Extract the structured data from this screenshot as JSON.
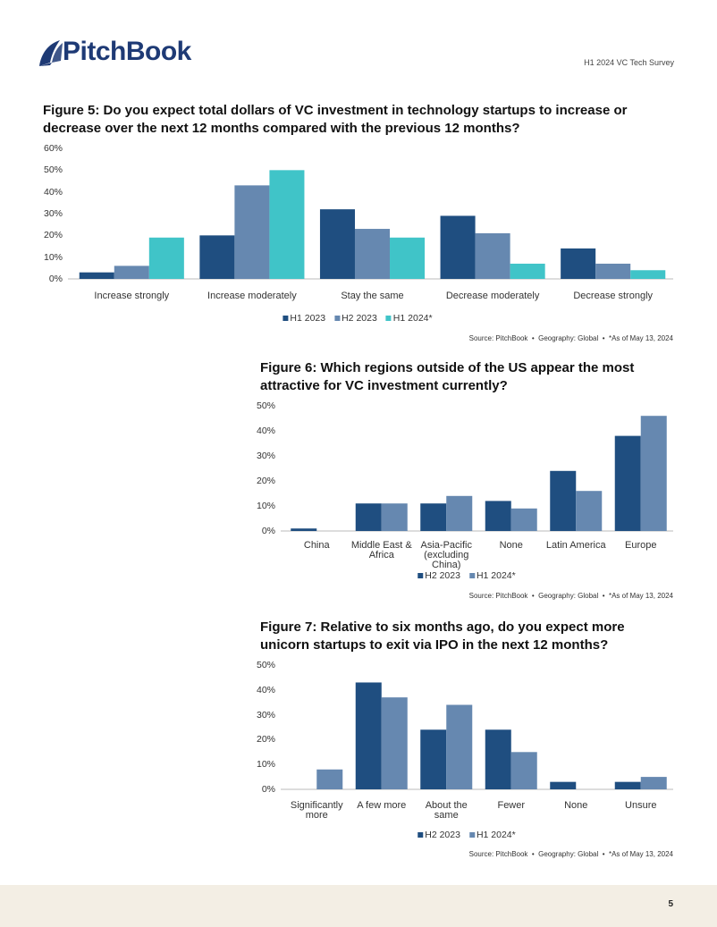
{
  "header": {
    "logo": "PitchBook",
    "report": "H1 2024 VC Tech Survey"
  },
  "footer": {
    "page": 5
  },
  "chart_data": [
    {
      "type": "bar",
      "title": "Figure 5: Do you expect total dollars of VC investment in technology startups to increase or decrease over the next 12 months compared with the previous 12 months?",
      "categories": [
        "Increase strongly",
        "Increase moderately",
        "Stay the same",
        "Decrease moderately",
        "Decrease strongly"
      ],
      "series": [
        {
          "name": "H1 2023",
          "color": "#1f4e80",
          "values": [
            3,
            20,
            32,
            29,
            14
          ]
        },
        {
          "name": "H2 2023",
          "color": "#6688b0",
          "values": [
            6,
            43,
            23,
            21,
            7
          ]
        },
        {
          "name": "H1 2024*",
          "color": "#40c4c8",
          "values": [
            19,
            50,
            19,
            7,
            4
          ]
        }
      ],
      "ylim": [
        0,
        60
      ],
      "yticks": [
        {
          "value": 0,
          "label": "0%"
        },
        {
          "value": 10,
          "label": "10%"
        },
        {
          "value": 20,
          "label": "20%"
        },
        {
          "value": 30,
          "label": "30%"
        },
        {
          "value": 40,
          "label": "40%"
        },
        {
          "value": 50,
          "label": "50%"
        },
        {
          "value": 60,
          "label": "60%"
        }
      ],
      "grid": false,
      "legend": "bottom",
      "source": "Source: PitchBook  •  Geography: Global  •  *As of May 13, 2024"
    },
    {
      "type": "bar",
      "title": "Figure 6: Which regions outside of the US appear the most attractive for VC investment currently?",
      "categories": [
        "China",
        "Middle East & Africa",
        "Asia-Pacific (excluding China)",
        "None",
        "Latin America",
        "Europe"
      ],
      "series": [
        {
          "name": "H2 2023",
          "color": "#1f4e80",
          "values": [
            1,
            11,
            11,
            12,
            24,
            38
          ]
        },
        {
          "name": "H1 2024*",
          "color": "#6688b0",
          "values": [
            0,
            11,
            14,
            9,
            16,
            46
          ]
        }
      ],
      "ylim": [
        0,
        50
      ],
      "yticks": [
        {
          "value": 0,
          "label": "0%"
        },
        {
          "value": 10,
          "label": "10%"
        },
        {
          "value": 20,
          "label": "20%"
        },
        {
          "value": 30,
          "label": "30%"
        },
        {
          "value": 40,
          "label": "40%"
        },
        {
          "value": 50,
          "label": "50%"
        }
      ],
      "grid": false,
      "legend": "bottom",
      "source": "Source: PitchBook  •  Geography: Global  •  *As of May 13, 2024"
    },
    {
      "type": "bar",
      "title": "Figure 7: Relative to six months ago, do you expect more unicorn startups to exit via IPO in the next 12 months?",
      "categories": [
        "Significantly more",
        "A few more",
        "About the same",
        "Fewer",
        "None",
        "Unsure"
      ],
      "series": [
        {
          "name": "H2 2023",
          "color": "#1f4e80",
          "values": [
            0,
            43,
            24,
            24,
            3,
            3
          ]
        },
        {
          "name": "H1 2024*",
          "color": "#6688b0",
          "values": [
            8,
            37,
            34,
            15,
            0,
            5
          ]
        }
      ],
      "ylim": [
        0,
        50
      ],
      "yticks": [
        {
          "value": 0,
          "label": "0%"
        },
        {
          "value": 10,
          "label": "10%"
        },
        {
          "value": 20,
          "label": "20%"
        },
        {
          "value": 30,
          "label": "30%"
        },
        {
          "value": 40,
          "label": "40%"
        },
        {
          "value": 50,
          "label": "50%"
        }
      ],
      "grid": false,
      "legend": "bottom",
      "source": "Source: PitchBook  •  Geography: Global  •  *As of May 13, 2024"
    }
  ]
}
